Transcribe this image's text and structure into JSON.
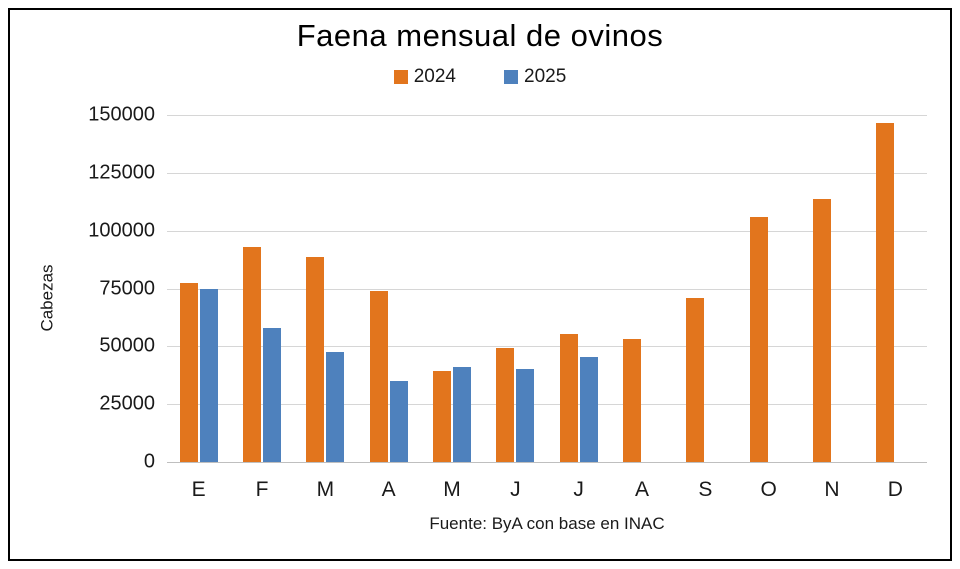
{
  "window": {
    "title": "Faena mensual de ovinos"
  },
  "chart_data": {
    "type": "bar",
    "title": "Faena mensual de ovinos",
    "xlabel": "",
    "ylabel": "Cabezas",
    "source_note": "Fuente: ByA con base en INAC",
    "categories": [
      "E",
      "F",
      "M",
      "A",
      "M",
      "J",
      "J",
      "A",
      "S",
      "O",
      "N",
      "D"
    ],
    "series": [
      {
        "name": "2024",
        "color": "#e2751d",
        "values": [
          77500,
          93000,
          88500,
          74000,
          39500,
          49500,
          55500,
          53000,
          71000,
          106000,
          113500,
          146500
        ]
      },
      {
        "name": "2025",
        "color": "#4e81bd",
        "values": [
          75000,
          58000,
          47500,
          35000,
          41000,
          40000,
          45500,
          null,
          null,
          null,
          null,
          null
        ]
      }
    ],
    "ylim": [
      0,
      150000
    ],
    "ytick_step": 25000,
    "ytick_labels": [
      "0",
      "25000",
      "50000",
      "75000",
      "100000",
      "125000",
      "150000"
    ],
    "grid": true,
    "legend_position": "top",
    "gridline_color": "#d6d6d6",
    "background_color": "#ffffff",
    "border_color": "#000000"
  }
}
